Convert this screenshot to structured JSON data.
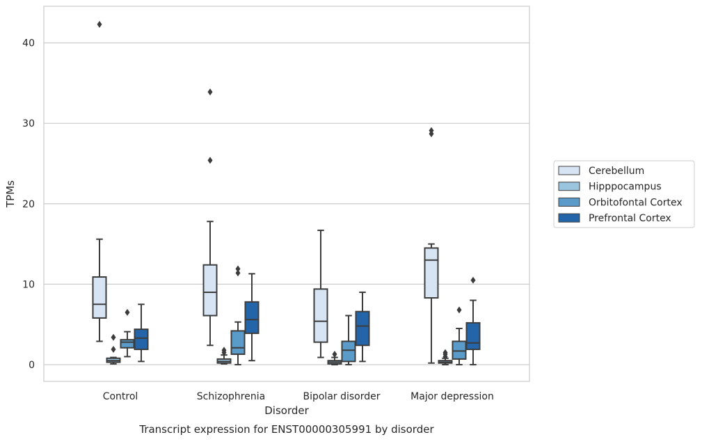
{
  "chart_data": {
    "type": "boxplot",
    "caption": "Transcript expression for ENST00000305991 by disorder",
    "xlabel": "Disorder",
    "ylabel": "TPMs",
    "ylim": [
      -2,
      44
    ],
    "yticks": [
      0,
      10,
      20,
      30,
      40
    ],
    "grid": "horizontal",
    "legend_position": "right",
    "categories": [
      "Control",
      "Schizophrenia",
      "Bipolar disorder",
      "Major depression"
    ],
    "series": [
      {
        "name": "Cerebellum",
        "color": "#d6e4f3",
        "boxes": [
          {
            "whisker_low": 2.9,
            "q1": 5.8,
            "median": 7.5,
            "q3": 10.9,
            "whisker_high": 15.6,
            "outliers": [
              42.3
            ]
          },
          {
            "whisker_low": 2.4,
            "q1": 6.1,
            "median": 9.0,
            "q3": 12.4,
            "whisker_high": 17.8,
            "outliers": [
              25.4,
              33.9
            ]
          },
          {
            "whisker_low": 0.9,
            "q1": 2.8,
            "median": 5.4,
            "q3": 9.4,
            "whisker_high": 16.7,
            "outliers": []
          },
          {
            "whisker_low": 0.2,
            "q1": 8.3,
            "median": 13.0,
            "q3": 14.5,
            "whisker_high": 15.0,
            "outliers": [
              28.7,
              29.1
            ]
          }
        ]
      },
      {
        "name": "Hipppocampus",
        "color": "#9bc4de",
        "boxes": [
          {
            "whisker_low": 0.1,
            "q1": 0.3,
            "median": 0.5,
            "q3": 0.8,
            "whisker_high": 0.9,
            "outliers": [
              1.9,
              3.4
            ]
          },
          {
            "whisker_low": 0.1,
            "q1": 0.2,
            "median": 0.4,
            "q3": 0.7,
            "whisker_high": 1.2,
            "outliers": [
              1.5,
              1.8
            ]
          },
          {
            "whisker_low": 0.0,
            "q1": 0.1,
            "median": 0.3,
            "q3": 0.5,
            "whisker_high": 0.9,
            "outliers": [
              1.3
            ]
          },
          {
            "whisker_low": 0.0,
            "q1": 0.2,
            "median": 0.3,
            "q3": 0.5,
            "whisker_high": 0.8,
            "outliers": [
              1.0,
              1.3,
              1.5
            ]
          }
        ]
      },
      {
        "name": "Orbitofontal Cortex",
        "color": "#5a9bc9",
        "boxes": [
          {
            "whisker_low": 1.0,
            "q1": 2.1,
            "median": 2.8,
            "q3": 3.1,
            "whisker_high": 4.1,
            "outliers": [
              6.5
            ]
          },
          {
            "whisker_low": 0.0,
            "q1": 1.3,
            "median": 2.1,
            "q3": 4.2,
            "whisker_high": 5.3,
            "outliers": [
              11.4,
              11.9
            ]
          },
          {
            "whisker_low": 0.0,
            "q1": 0.4,
            "median": 1.8,
            "q3": 2.9,
            "whisker_high": 6.1,
            "outliers": []
          },
          {
            "whisker_low": 0.0,
            "q1": 0.7,
            "median": 1.7,
            "q3": 2.9,
            "whisker_high": 4.5,
            "outliers": [
              6.8
            ]
          }
        ]
      },
      {
        "name": "Prefrontal Cortex",
        "color": "#2464a8",
        "boxes": [
          {
            "whisker_low": 0.4,
            "q1": 1.9,
            "median": 3.3,
            "q3": 4.4,
            "whisker_high": 7.5,
            "outliers": []
          },
          {
            "whisker_low": 0.5,
            "q1": 3.9,
            "median": 5.6,
            "q3": 7.8,
            "whisker_high": 11.3,
            "outliers": []
          },
          {
            "whisker_low": 0.4,
            "q1": 2.4,
            "median": 4.8,
            "q3": 6.6,
            "whisker_high": 9.0,
            "outliers": []
          },
          {
            "whisker_low": 0.0,
            "q1": 1.9,
            "median": 2.7,
            "q3": 5.2,
            "whisker_high": 8.0,
            "outliers": [
              10.5
            ]
          }
        ]
      }
    ]
  }
}
